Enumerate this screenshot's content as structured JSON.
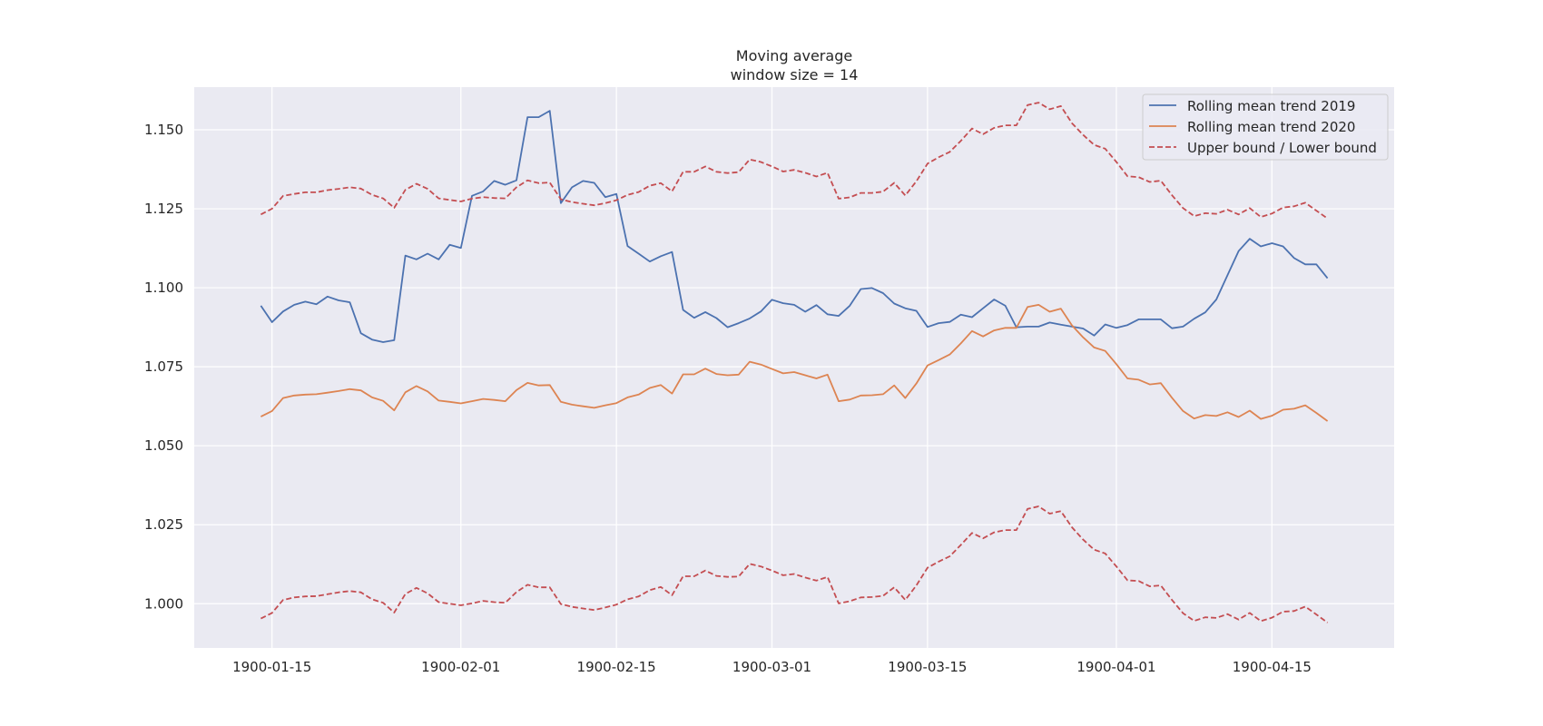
{
  "chart_data": {
    "type": "line",
    "title": "Moving average\nwindow size = 14",
    "title_lines": [
      "Moving average",
      "window size = 14"
    ],
    "xlabel": "",
    "ylabel": "",
    "x_start": "1900-01-14",
    "x_ticks": [
      "1900-01-15",
      "1900-02-01",
      "1900-02-15",
      "1900-03-01",
      "1900-03-15",
      "1900-04-01",
      "1900-04-15"
    ],
    "xlim": [
      "1900-01-08",
      "1900-04-26"
    ],
    "y_ticks": [
      "1.000",
      "1.025",
      "1.050",
      "1.075",
      "1.100",
      "1.125",
      "1.150"
    ],
    "ylim": [
      0.986,
      1.1635
    ],
    "grid": true,
    "legend_position": "upper right",
    "series": [
      {
        "name": "Rolling mean trend 2019",
        "color": "#4c72b0",
        "dash": "solid",
        "values": [
          1.0943,
          1.0891,
          1.0925,
          1.0946,
          1.0956,
          1.0948,
          1.0972,
          1.096,
          1.0954,
          1.0856,
          1.0836,
          1.0828,
          1.0834,
          1.1102,
          1.109,
          1.1108,
          1.109,
          1.1136,
          1.1126,
          1.1291,
          1.1305,
          1.1338,
          1.1326,
          1.134,
          1.154,
          1.154,
          1.156,
          1.1268,
          1.1318,
          1.1338,
          1.1332,
          1.1287,
          1.1297,
          1.1132,
          1.1108,
          1.1083,
          1.11,
          1.1113,
          1.093,
          1.0905,
          1.0923,
          1.0904,
          1.0875,
          1.0888,
          1.0903,
          1.0925,
          1.0962,
          1.0951,
          1.0946,
          1.0924,
          1.0945,
          1.0916,
          1.0911,
          1.0943,
          1.0996,
          1.0999,
          1.0983,
          1.095,
          1.0935,
          1.0927,
          1.0876,
          1.0888,
          1.0892,
          1.0915,
          1.0907,
          1.0935,
          1.0963,
          1.0943,
          1.0875,
          1.0877,
          1.0877,
          1.089,
          1.0883,
          1.0877,
          1.0871,
          1.0849,
          1.0884,
          1.0873,
          1.0882,
          1.09,
          1.09,
          1.09,
          1.0872,
          1.0877,
          1.0902,
          1.0922,
          1.0963,
          1.104,
          1.1116,
          1.1155,
          1.1131,
          1.1141,
          1.1131,
          1.1094,
          1.1074,
          1.1074,
          1.103
        ]
      },
      {
        "name": "Rolling mean trend 2020",
        "color": "#dd8452",
        "dash": "solid",
        "values": [
          1.0592,
          1.061,
          1.0651,
          1.0659,
          1.0662,
          1.0663,
          1.0668,
          1.0673,
          1.0679,
          1.0675,
          1.0653,
          1.0642,
          1.0612,
          1.0669,
          1.0689,
          1.0672,
          1.0643,
          1.0639,
          1.0634,
          1.0641,
          1.0648,
          1.0645,
          1.0641,
          1.0676,
          1.0699,
          1.0691,
          1.0692,
          1.0639,
          1.063,
          1.0625,
          1.062,
          1.0628,
          1.0635,
          1.0653,
          1.0662,
          1.0683,
          1.0692,
          1.0665,
          1.0726,
          1.0726,
          1.0744,
          1.0727,
          1.0723,
          1.0725,
          1.0766,
          1.0757,
          1.0743,
          1.0729,
          1.0733,
          1.0723,
          1.0713,
          1.0725,
          1.0641,
          1.0646,
          1.0659,
          1.066,
          1.0663,
          1.0691,
          1.0651,
          1.0697,
          1.0754,
          1.0771,
          1.0789,
          1.0824,
          1.0863,
          1.0846,
          1.0865,
          1.0873,
          1.0873,
          1.0939,
          1.0946,
          1.0924,
          1.0934,
          1.0881,
          1.0843,
          1.0811,
          1.08,
          1.0758,
          1.0713,
          1.0709,
          1.0694,
          1.0698,
          1.0652,
          1.061,
          1.0586,
          1.0597,
          1.0594,
          1.0606,
          1.0591,
          1.0611,
          1.0585,
          1.0595,
          1.0614,
          1.0617,
          1.0628,
          1.0604,
          1.0578
        ]
      },
      {
        "name": "Upper bound / Lower bound",
        "color": "#c44e52",
        "dash": "dashed",
        "values": [
          1.1232,
          1.125,
          1.1291,
          1.1297,
          1.1302,
          1.1302,
          1.1309,
          1.1313,
          1.1318,
          1.1314,
          1.1294,
          1.1283,
          1.1253,
          1.131,
          1.1329,
          1.1313,
          1.1283,
          1.1278,
          1.1273,
          1.1282,
          1.1287,
          1.1284,
          1.1283,
          1.1318,
          1.134,
          1.1331,
          1.1333,
          1.128,
          1.1271,
          1.1266,
          1.1261,
          1.1268,
          1.1277,
          1.1294,
          1.1303,
          1.1323,
          1.1331,
          1.1305,
          1.1367,
          1.1367,
          1.1384,
          1.1367,
          1.1363,
          1.1366,
          1.1406,
          1.1398,
          1.1384,
          1.1368,
          1.1373,
          1.1364,
          1.1352,
          1.1364,
          1.1282,
          1.1286,
          1.13,
          1.13,
          1.1304,
          1.1332,
          1.1292,
          1.1337,
          1.1393,
          1.1413,
          1.143,
          1.1465,
          1.1504,
          1.1486,
          1.1506,
          1.1514,
          1.1514,
          1.1578,
          1.1586,
          1.1565,
          1.1575,
          1.1521,
          1.1484,
          1.1452,
          1.144,
          1.1398,
          1.1353,
          1.135,
          1.1335,
          1.1339,
          1.1293,
          1.1252,
          1.1227,
          1.1236,
          1.1234,
          1.1247,
          1.1232,
          1.1252,
          1.1224,
          1.1235,
          1.1254,
          1.1258,
          1.1269,
          1.1244,
          1.1219
        ]
      },
      {
        "name": "",
        "color": "#c44e52",
        "dash": "dashed",
        "values": [
          0.9953,
          0.9971,
          1.0012,
          1.002,
          1.0023,
          1.0024,
          1.003,
          1.0036,
          1.004,
          1.0036,
          1.0014,
          1.0003,
          0.9972,
          1.0031,
          1.005,
          1.0033,
          1.0005,
          1.0,
          0.9995,
          1.0001,
          1.0009,
          1.0005,
          1.0003,
          1.0037,
          1.006,
          1.0052,
          1.0052,
          0.9999,
          0.999,
          0.9985,
          0.998,
          0.9988,
          0.9997,
          1.0014,
          1.0023,
          1.0043,
          1.0053,
          1.0027,
          1.0087,
          1.0087,
          1.0105,
          1.0088,
          1.0085,
          1.0086,
          1.0126,
          1.0118,
          1.0105,
          1.009,
          1.0094,
          1.0083,
          1.0073,
          1.0085,
          1.0001,
          1.0008,
          1.002,
          1.0021,
          1.0025,
          1.0052,
          1.0012,
          1.0058,
          1.0114,
          1.0133,
          1.015,
          1.0186,
          1.0224,
          1.0207,
          1.0226,
          1.0233,
          1.0233,
          1.03,
          1.0308,
          1.0285,
          1.0293,
          1.0242,
          1.0203,
          1.0171,
          1.0159,
          1.0118,
          1.0074,
          1.0072,
          1.0055,
          1.0058,
          1.0012,
          0.997,
          0.9946,
          0.9957,
          0.9955,
          0.9967,
          0.995,
          0.9971,
          0.9945,
          0.9956,
          0.9975,
          0.9977,
          0.9991,
          0.9966,
          0.994
        ]
      }
    ]
  }
}
